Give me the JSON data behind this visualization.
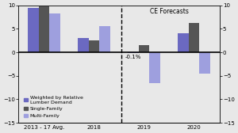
{
  "categories": [
    "2013 - 17 Avg.",
    "2018",
    "2019",
    "2020"
  ],
  "weighted": [
    9.5,
    3.0,
    -0.1,
    4.0
  ],
  "single_family": [
    9.8,
    2.5,
    1.5,
    6.3
  ],
  "multi_family": [
    8.3,
    5.5,
    -6.5,
    -4.5
  ],
  "weighted_label": "-0.1%",
  "ce_forecast_label": "CE Forecasts",
  "legend_weighted": "Weighted by Relative\nLumber Demand",
  "legend_single": "Single-Family",
  "legend_multi": "Multi-Family",
  "color_weighted": "#6B69C1",
  "color_single": "#555555",
  "color_multi": "#9E9FDE",
  "ylim": [
    -15,
    10
  ],
  "yticks": [
    -15,
    -10,
    -5,
    0,
    5,
    10
  ],
  "background": "#e8e8e8"
}
